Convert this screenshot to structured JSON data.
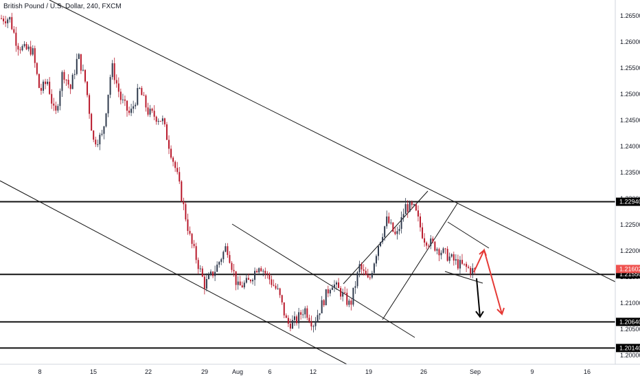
{
  "header": {
    "symbol_title": "British Pound / U.S. Dollar, 240, FXCM"
  },
  "colors": {
    "up": "#2f3a4d",
    "down": "#b8182a",
    "line": "#111111",
    "axis_border": "#d1d4dc",
    "price_badge": "#ef5350",
    "arrow_red": "#e53935",
    "arrow_black": "#000000"
  },
  "chart_data": {
    "type": "candlestick",
    "timeframe": "240",
    "symbol": "British Pound / U.S. Dollar",
    "source": "FXCM",
    "x_axis": {
      "ticks": [
        "8",
        "15",
        "22",
        "29",
        "Aug",
        "6",
        "12",
        "19",
        "26",
        "Sep",
        "9",
        "16"
      ]
    },
    "y_axis": {
      "ylim": [
        1.1985,
        1.2676
      ],
      "ticks": [
        "1.26500",
        "1.26000",
        "1.25500",
        "1.25000",
        "1.24500",
        "1.24000",
        "1.23500",
        "1.23000",
        "1.22500",
        "1.22000",
        "1.21500",
        "1.21000",
        "1.20500",
        "1.20000"
      ]
    },
    "horizontal_levels": [
      {
        "price": 1.2294,
        "label": "1.22940"
      },
      {
        "price": 1.2155,
        "label": "1.21550"
      },
      {
        "price": 1.2064,
        "label": "1.20640"
      },
      {
        "price": 1.2014,
        "label": "1.20140"
      }
    ],
    "current_price": {
      "price": 1.216,
      "label": "1.21602"
    },
    "price_path": [
      [
        "8",
        1.2645
      ],
      [
        "8",
        1.2595
      ],
      [
        "8",
        1.2585
      ],
      [
        "8",
        1.2585
      ],
      [
        "8",
        1.2505
      ],
      [
        "15",
        1.2525
      ],
      [
        "15",
        1.2455
      ],
      [
        "15",
        1.2545
      ],
      [
        "15",
        1.251
      ],
      [
        "15",
        1.2575
      ],
      [
        "15",
        1.252
      ],
      [
        "15",
        1.241
      ],
      [
        "22",
        1.242
      ],
      [
        "22",
        1.2555
      ],
      [
        "22",
        1.249
      ],
      [
        "22",
        1.246
      ],
      [
        "22",
        1.251
      ],
      [
        "22",
        1.2465
      ],
      [
        "29",
        1.245
      ],
      [
        "29",
        1.235
      ],
      [
        "29",
        1.222
      ],
      [
        "29",
        1.2135
      ],
      [
        "Aug",
        1.2165
      ],
      [
        "Aug",
        1.221
      ],
      [
        "Aug",
        1.213
      ],
      [
        "6",
        1.214
      ],
      [
        "6",
        1.2175
      ],
      [
        "6",
        1.2145
      ],
      [
        "12",
        1.212
      ],
      [
        "12",
        1.206
      ],
      [
        "12",
        1.2065
      ],
      [
        "12",
        1.209
      ],
      [
        "12",
        1.206
      ],
      [
        "19",
        1.21
      ],
      [
        "19",
        1.214
      ],
      [
        "19",
        1.212
      ],
      [
        "19",
        1.2095
      ],
      [
        "19",
        1.217
      ],
      [
        "19",
        1.214
      ],
      [
        "26",
        1.221
      ],
      [
        "26",
        1.226
      ],
      [
        "26",
        1.2225
      ],
      [
        "26",
        1.2285
      ],
      [
        "26",
        1.228
      ],
      [
        "26",
        1.2225
      ],
      [
        "Sep",
        1.22
      ],
      [
        "Sep",
        1.2175
      ],
      [
        "Sep",
        1.216
      ]
    ],
    "drawings": {
      "trendlines": 6,
      "projection_arrows": [
        "red zig-zag up then down",
        "black down"
      ]
    }
  }
}
